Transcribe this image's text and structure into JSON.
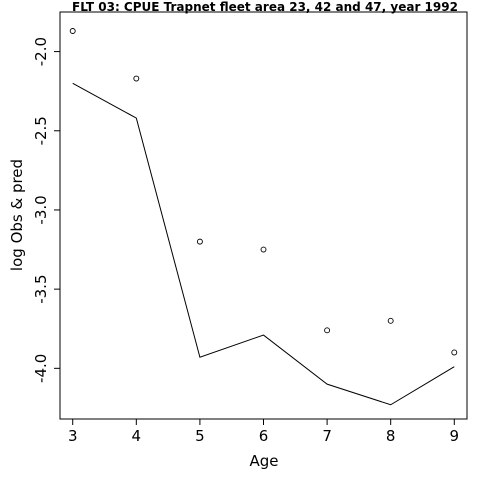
{
  "chart_data": {
    "type": "scatter",
    "title": "FLT 03: CPUE Trapnet fleet area 23, 42 and 47, year 1992",
    "xlabel": "Age",
    "ylabel": "log Obs & pred",
    "x_ticks": [
      3,
      4,
      5,
      6,
      7,
      8,
      9
    ],
    "y_ticks": [
      -2.0,
      -2.5,
      -3.0,
      -3.5,
      -4.0
    ],
    "y_tick_labels": [
      "-2.0",
      "-2.5",
      "-3.0",
      "-3.5",
      "-4.0"
    ],
    "xlim": [
      2.8,
      9.2
    ],
    "ylim": [
      -4.32,
      -1.75
    ],
    "grid": false,
    "series": [
      {
        "style": "points",
        "x": [
          3,
          4,
          5,
          6,
          7,
          8,
          9
        ],
        "y": [
          -1.87,
          -2.17,
          -3.2,
          -3.25,
          -3.76,
          -3.7,
          -3.9
        ]
      },
      {
        "style": "line",
        "x": [
          3,
          4,
          5,
          6,
          7,
          8,
          9
        ],
        "y": [
          -2.2,
          -2.42,
          -3.93,
          -3.79,
          -4.1,
          -4.23,
          -3.99
        ]
      }
    ]
  }
}
